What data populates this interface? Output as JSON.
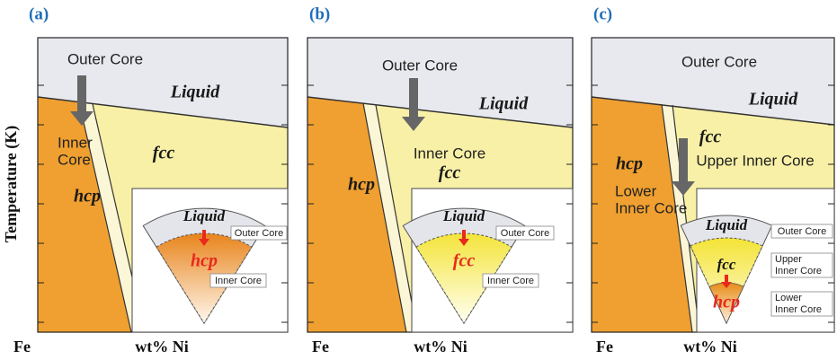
{
  "y_axis_label": "Temperature (K)",
  "panels": [
    {
      "label": "(a)",
      "x_left": "Fe",
      "x_mid": "wt% Ni",
      "outer_core": "Outer Core",
      "liquid": "Liquid",
      "inner_core": [
        "Inner",
        "Core"
      ],
      "fcc": "fcc",
      "hcp": "hcp",
      "inset": {
        "liquid": "Liquid",
        "outer_core": "Outer Core",
        "phase": "hcp",
        "inner_core": "Inner Core"
      }
    },
    {
      "label": "(b)",
      "x_left": "Fe",
      "x_mid": "wt% Ni",
      "outer_core": "Outer Core",
      "liquid": "Liquid",
      "inner_core": "Inner Core",
      "fcc": "fcc",
      "hcp": "hcp",
      "inset": {
        "liquid": "Liquid",
        "outer_core": "Outer Core",
        "phase": "fcc",
        "inner_core": "Inner Core"
      }
    },
    {
      "label": "(c)",
      "x_left": "Fe",
      "x_mid": "wt% Ni",
      "outer_core": "Outer Core",
      "liquid": "Liquid",
      "fcc": "fcc",
      "upper_inner_core": "Upper Inner Core",
      "hcp": "hcp",
      "lower_inner_core": [
        "Lower",
        "Inner Core"
      ],
      "inset": {
        "liquid": "Liquid",
        "outer_core": "Outer Core",
        "fcc": "fcc",
        "upper_inner_core": [
          "Upper",
          "Inner Core"
        ],
        "hcp": "hcp",
        "lower_inner_core": [
          "Lower",
          "Inner Core"
        ]
      }
    }
  ]
}
